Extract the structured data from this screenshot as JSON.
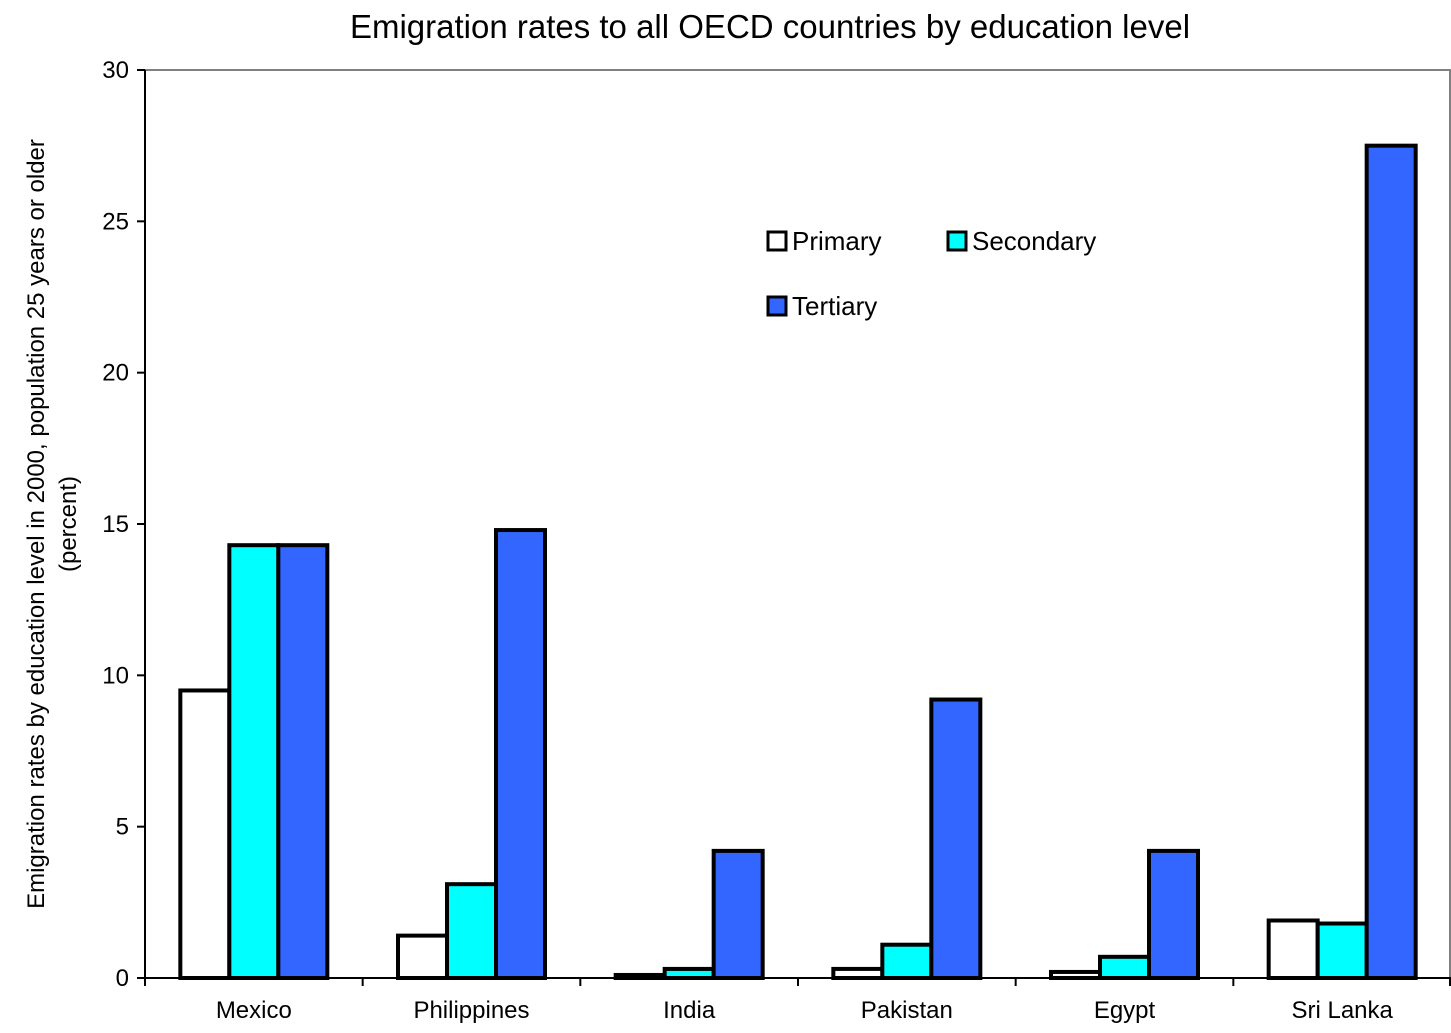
{
  "chart_data": {
    "type": "bar",
    "title": "Emigration rates to all OECD countries by education level",
    "ylabel_lines": [
      "Emigration rates by education level in 2000, population 25 years or older",
      "(percent)"
    ],
    "xlabel": "",
    "ylim": [
      0,
      30
    ],
    "yticks": [
      0,
      5,
      10,
      15,
      20,
      25,
      30
    ],
    "grid": false,
    "legend_position": "top-right",
    "categories": [
      "Mexico",
      "Philippines",
      "India",
      "Pakistan",
      "Egypt",
      "Sri Lanka"
    ],
    "series": [
      {
        "name": "Primary",
        "color": "#FFFFFF",
        "values": [
          9.5,
          1.4,
          0.1,
          0.3,
          0.2,
          1.9
        ]
      },
      {
        "name": "Secondary",
        "color": "#00FFFF",
        "values": [
          14.3,
          3.1,
          0.3,
          1.1,
          0.7,
          1.8
        ]
      },
      {
        "name": "Tertiary",
        "color": "#3366FF",
        "values": [
          14.3,
          14.8,
          4.2,
          9.2,
          4.2,
          27.5
        ]
      }
    ]
  }
}
